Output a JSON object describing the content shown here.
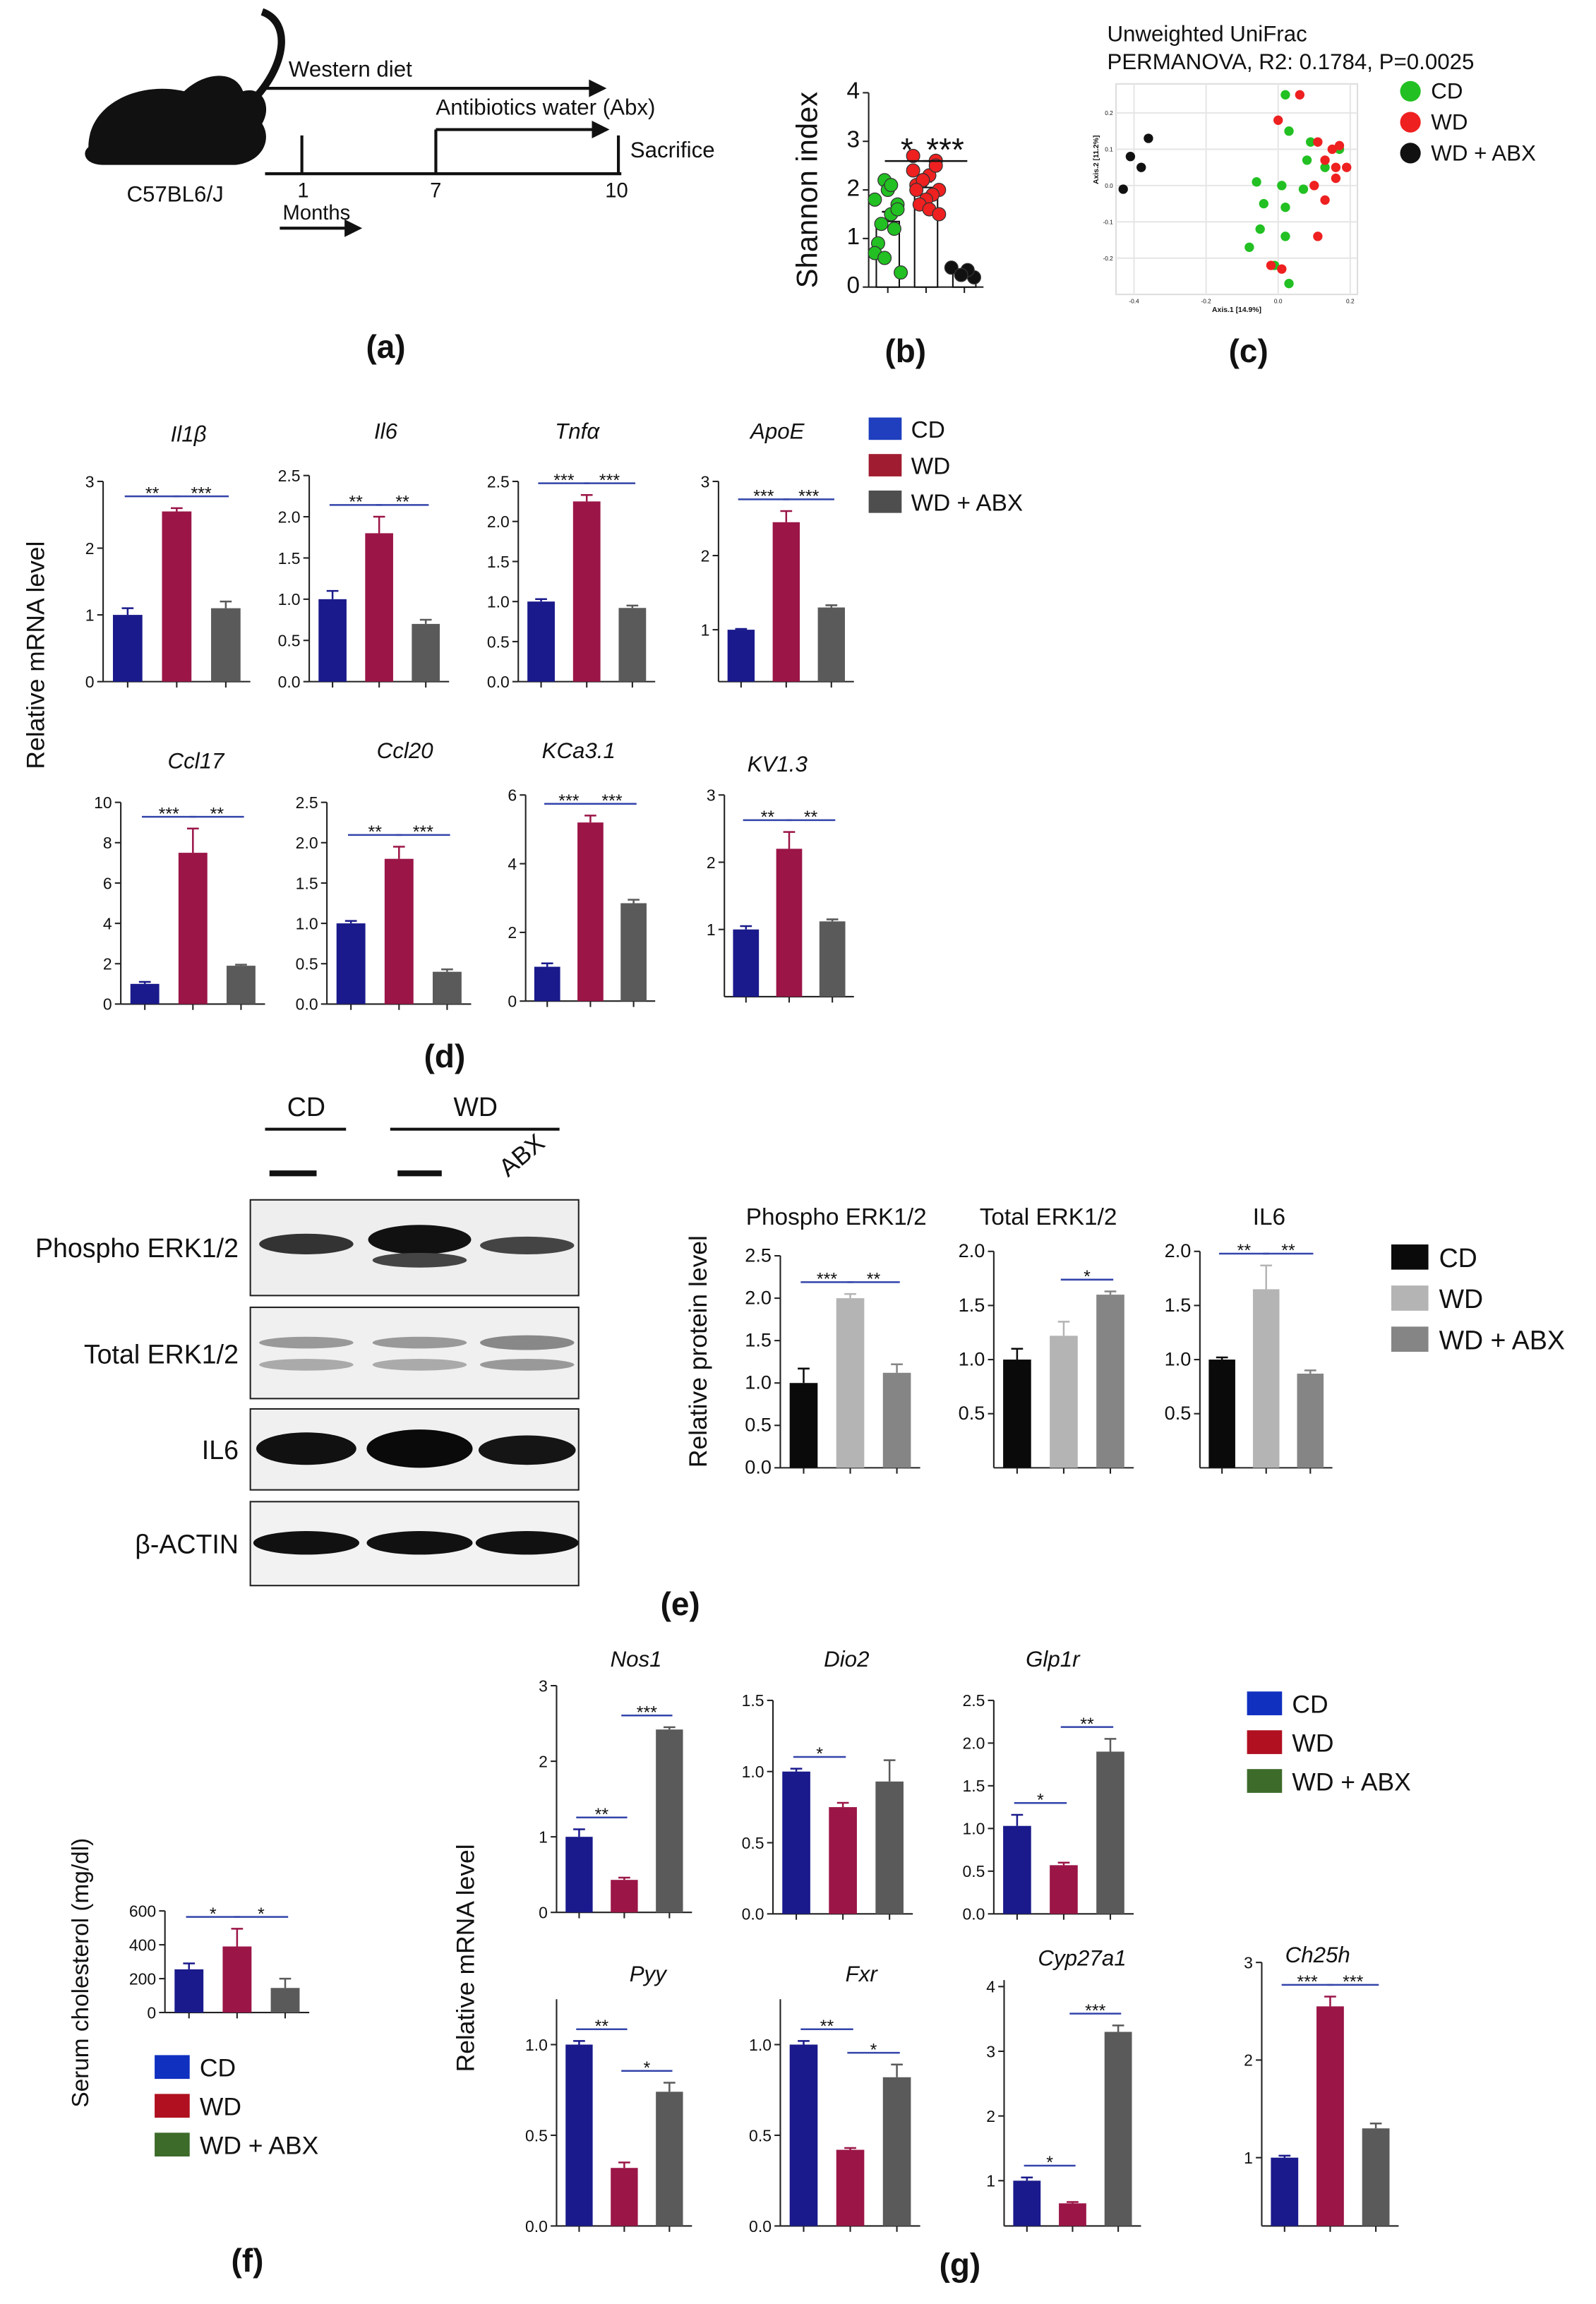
{
  "panel_labels": [
    "(a)",
    "(b)",
    "(c)",
    "(d)",
    "(e)",
    "(f)",
    "(g)"
  ],
  "diagram": {
    "diet": "Western diet",
    "abx": "Antibiotics water  (Abx)",
    "end": "Sacrifice",
    "months": [
      "1",
      "7",
      "10"
    ],
    "unit": "Months",
    "strain": "C57BL6/J"
  },
  "blot": {
    "groups": [
      "CD",
      "WD"
    ],
    "lanes": [
      "ABX"
    ],
    "rows": [
      "Phospho ERK1/2",
      "Total ERK1/2",
      "IL6",
      "β-ACTIN"
    ]
  },
  "legends": [
    {
      "items": [
        {
          "name": "CD",
          "color": "#1f3fbf"
        },
        {
          "name": "WD",
          "color": "#a01c30"
        },
        {
          "name": "WD + ABX",
          "color": "#4e4e4e"
        }
      ]
    },
    {
      "items": [
        {
          "name": "CD",
          "color": "#0a0a0a"
        },
        {
          "name": "WD",
          "color": "#b4b4b4"
        },
        {
          "name": "WD + ABX",
          "color": "#858585"
        }
      ]
    },
    {
      "items": [
        {
          "name": "CD",
          "color": "#1030c0"
        },
        {
          "name": "WD",
          "color": "#b01020"
        },
        {
          "name": "WD + ABX",
          "color": "#3d6b2a"
        }
      ]
    },
    {
      "items": [
        {
          "name": "CD",
          "color": "#1030c0"
        },
        {
          "name": "WD",
          "color": "#b01020"
        },
        {
          "name": "WD + ABX",
          "color": "#3d6b2a"
        }
      ]
    }
  ],
  "chart_data": [
    {
      "type": "strip",
      "ylabel": "Shannon index",
      "categories": [
        null,
        null,
        null
      ],
      "values": [
        1.35,
        2.05,
        0.3
      ],
      "errors": [
        0.2,
        0.12,
        0.05
      ],
      "colors": [
        "#ffffff",
        "#ffffff",
        "#ffffff"
      ],
      "points": [
        [
          1.8,
          1.7,
          1.5,
          2.2,
          0.9,
          0.3,
          1.2,
          2.0,
          1.3,
          0.7,
          1.6,
          2.1,
          0.6
        ],
        [
          2.7,
          2.6,
          2.3,
          2.2,
          2.1,
          2.0,
          1.9,
          1.8,
          1.7,
          2.4,
          2.5,
          1.6,
          2.2,
          2.0,
          1.5
        ],
        [
          0.4,
          0.2,
          0.35,
          0.25
        ]
      ],
      "point_colors": [
        "#22c022",
        "#ee2020",
        "#111111"
      ],
      "ylim": [
        0,
        4
      ],
      "yticks": [
        0,
        1,
        2,
        3,
        4
      ],
      "annotations": [
        "*",
        "***"
      ]
    },
    {
      "type": "scatter",
      "title": "Unweighted UniFrac",
      "subtitle": "PERMANOVA, R2: 0.1784, P=0.0025",
      "xlabel": "Axis.1  [14.9%]",
      "ylabel": "Axis.2  [11.2%]",
      "xlim": [
        -0.45,
        0.22
      ],
      "ylim": [
        -0.3,
        0.28
      ],
      "xticks": [
        -0.4,
        -0.2,
        {
          "value": 0,
          "label": "0.0"
        },
        0.2
      ],
      "yticks": [
        -0.2,
        -0.1,
        {
          "value": 0,
          "label": "0.0"
        },
        0.1,
        0.2
      ],
      "grid": true,
      "series": [
        {
          "name": "CD",
          "color": "#22c022",
          "x": [
            0.02,
            0.03,
            0.09,
            -0.06,
            0.01,
            0.07,
            -0.04,
            0.02,
            0.08,
            0.13,
            -0.05,
            0.02,
            -0.01,
            -0.08,
            0.03,
            0.17
          ],
          "values": [
            0.25,
            0.15,
            0.12,
            0.01,
            0,
            -0.01,
            -0.05,
            -0.06,
            0.07,
            0.05,
            -0.12,
            -0.14,
            -0.22,
            -0.17,
            -0.27,
            0.1
          ]
        },
        {
          "name": "WD",
          "color": "#ee2020",
          "x": [
            0.06,
            0,
            0.11,
            0.15,
            0.17,
            0.13,
            0.16,
            0.1,
            0.13,
            0.19,
            0.11,
            -0.02,
            0.01,
            0.16
          ],
          "values": [
            0.25,
            0.18,
            0.12,
            0.1,
            0.11,
            0.07,
            0.02,
            0,
            -0.04,
            0.05,
            -0.14,
            -0.22,
            -0.23,
            0.05
          ]
        },
        {
          "name": "WD + ABX",
          "color": "#111111",
          "x": [
            -0.43,
            -0.41,
            -0.38,
            -0.36
          ],
          "values": [
            -0.01,
            0.08,
            0.05,
            0.13
          ]
        }
      ]
    },
    {
      "type": "bar",
      "title": "Il1β",
      "ylabel": "Relative mRNA level",
      "categories": [
        null,
        null,
        null
      ],
      "values": [
        1,
        2.55,
        1.1
      ],
      "errors": [
        0.1,
        0.05,
        0.1
      ],
      "colors": [
        "#1a1a8c",
        "#9b1547",
        "#5a5a5a"
      ],
      "ylim": [
        0,
        3
      ],
      "yticks": [
        0,
        1,
        2,
        3
      ],
      "annotations": [
        "**",
        "***"
      ]
    },
    {
      "type": "bar",
      "title": "Il6",
      "categories": [
        null,
        null,
        null
      ],
      "values": [
        1,
        1.8,
        0.7
      ],
      "errors": [
        0.1,
        0.2,
        0.05
      ],
      "colors": [
        "#1a1a8c",
        "#9b1547",
        "#5a5a5a"
      ],
      "ylim": [
        0,
        2.5
      ],
      "yticks": [
        {
          "value": 0,
          "label": "0.0"
        },
        {
          "value": 0.5,
          "label": "0.5"
        },
        {
          "value": 1,
          "label": "1.0"
        },
        {
          "value": 1.5,
          "label": "1.5"
        },
        {
          "value": 2,
          "label": "2.0"
        },
        {
          "value": 2.5,
          "label": "2.5"
        }
      ],
      "annotations": [
        "**",
        "**"
      ]
    },
    {
      "type": "bar",
      "title": "Tnfα",
      "categories": [
        null,
        null,
        null
      ],
      "values": [
        1,
        2.25,
        0.92
      ],
      "errors": [
        0.03,
        0.08,
        0.03
      ],
      "colors": [
        "#1a1a8c",
        "#9b1547",
        "#5a5a5a"
      ],
      "ylim": [
        0,
        2.5
      ],
      "yticks": [
        {
          "value": 0,
          "label": "0.0"
        },
        {
          "value": 0.5,
          "label": "0.5"
        },
        {
          "value": 1,
          "label": "1.0"
        },
        {
          "value": 1.5,
          "label": "1.5"
        },
        {
          "value": 2,
          "label": "2.0"
        },
        {
          "value": 2.5,
          "label": "2.5"
        }
      ],
      "annotations": [
        "***",
        "***"
      ]
    },
    {
      "type": "bar",
      "title": "ApoE",
      "categories": [
        null,
        null,
        null
      ],
      "values": [
        1,
        2.45,
        1.3
      ],
      "errors": [
        0.01,
        0.15,
        0.03
      ],
      "colors": [
        "#1a1a8c",
        "#9b1547",
        "#5a5a5a"
      ],
      "ylim": [
        0.3,
        3
      ],
      "yticks": [
        1,
        2,
        3
      ],
      "annotations": [
        "***",
        "***"
      ]
    },
    {
      "type": "bar",
      "title": "Ccl17",
      "categories": [
        null,
        null,
        null
      ],
      "values": [
        1,
        7.5,
        1.9
      ],
      "errors": [
        0.1,
        1.2,
        0.05
      ],
      "colors": [
        "#1a1a8c",
        "#9b1547",
        "#5a5a5a"
      ],
      "ylim": [
        0,
        10
      ],
      "yticks": [
        0,
        2,
        4,
        6,
        8,
        10
      ],
      "annotations": [
        "***",
        "**"
      ]
    },
    {
      "type": "bar",
      "title": "Ccl20",
      "categories": [
        null,
        null,
        null
      ],
      "values": [
        1,
        1.8,
        0.4
      ],
      "errors": [
        0.03,
        0.15,
        0.03
      ],
      "colors": [
        "#1a1a8c",
        "#9b1547",
        "#5a5a5a"
      ],
      "ylim": [
        0,
        2.5
      ],
      "yticks": [
        {
          "value": 0,
          "label": "0.0"
        },
        {
          "value": 0.5,
          "label": "0.5"
        },
        {
          "value": 1,
          "label": "1.0"
        },
        {
          "value": 1.5,
          "label": "1.5"
        },
        {
          "value": 2,
          "label": "2.0"
        },
        {
          "value": 2.5,
          "label": "2.5"
        }
      ],
      "annotations": [
        "**",
        "***"
      ]
    },
    {
      "type": "bar",
      "title": "KCa3.1",
      "categories": [
        null,
        null,
        null
      ],
      "values": [
        1,
        5.2,
        2.85
      ],
      "errors": [
        0.1,
        0.2,
        0.1
      ],
      "colors": [
        "#1a1a8c",
        "#9b1547",
        "#5a5a5a"
      ],
      "ylim": [
        0,
        6
      ],
      "yticks": [
        0,
        2,
        4,
        6
      ],
      "annotations": [
        "***",
        "***"
      ]
    },
    {
      "type": "bar",
      "title": "KV1.3",
      "categories": [
        null,
        null,
        null
      ],
      "values": [
        1,
        2.2,
        1.12
      ],
      "errors": [
        0.05,
        0.25,
        0.03
      ],
      "colors": [
        "#1a1a8c",
        "#9b1547",
        "#5a5a5a"
      ],
      "ylim": [
        0,
        3
      ],
      "yticks": [
        1,
        2,
        3
      ],
      "annotations": [
        "**",
        "**"
      ]
    },
    {
      "type": "bar",
      "title": "Phospho ERK1/2",
      "ylabel": "Relative protein level",
      "categories": [
        null,
        null,
        null
      ],
      "values": [
        1,
        2,
        1.12
      ],
      "errors": [
        0.17,
        0.05,
        0.1
      ],
      "colors": [
        "#0a0a0a",
        "#b4b4b4",
        "#858585"
      ],
      "ylim": [
        0,
        2.5
      ],
      "yticks": [
        {
          "value": 0,
          "label": "0.0"
        },
        {
          "value": 0.5,
          "label": "0.5"
        },
        {
          "value": 1,
          "label": "1.0"
        },
        {
          "value": 1.5,
          "label": "1.5"
        },
        {
          "value": 2,
          "label": "2.0"
        },
        {
          "value": 2.5,
          "label": "2.5"
        }
      ],
      "annotations": [
        "***",
        "**"
      ]
    },
    {
      "type": "bar",
      "title": "Total ERK1/2",
      "categories": [
        null,
        null,
        null
      ],
      "values": [
        1,
        1.22,
        1.6
      ],
      "errors": [
        0.1,
        0.13,
        0.03
      ],
      "colors": [
        "#0a0a0a",
        "#b4b4b4",
        "#858585"
      ],
      "ylim": [
        0,
        2
      ],
      "yticks": [
        {
          "value": 0.5,
          "label": "0.5"
        },
        {
          "value": 1,
          "label": "1.0"
        },
        {
          "value": 1.5,
          "label": "1.5"
        },
        {
          "value": 2,
          "label": "2.0"
        }
      ],
      "annotations": [
        null,
        "*"
      ]
    },
    {
      "type": "bar",
      "title": "IL6",
      "categories": [
        null,
        null,
        null
      ],
      "values": [
        1,
        1.65,
        0.87
      ],
      "errors": [
        0.02,
        0.22,
        0.03
      ],
      "colors": [
        "#0a0a0a",
        "#b4b4b4",
        "#858585"
      ],
      "ylim": [
        0,
        2
      ],
      "yticks": [
        {
          "value": 0.5,
          "label": "0.5"
        },
        {
          "value": 1,
          "label": "1.0"
        },
        {
          "value": 1.5,
          "label": "1.5"
        },
        {
          "value": 2,
          "label": "2.0"
        }
      ],
      "annotations": [
        "**",
        "**"
      ]
    },
    {
      "type": "bar",
      "ylabel": "Serum cholesterol (mg/dl)",
      "categories": [
        null,
        null,
        null
      ],
      "values": [
        255,
        390,
        145
      ],
      "errors": [
        35,
        105,
        55
      ],
      "colors": [
        "#1a1a8c",
        "#9b1547",
        "#5a5a5a"
      ],
      "ylim": [
        0,
        600
      ],
      "yticks": [
        0,
        200,
        400,
        600
      ],
      "annotations": [
        "*",
        "*"
      ]
    },
    {
      "type": "bar",
      "title": "Nos1",
      "ylabel": "Relative mRNA level",
      "categories": [
        null,
        null,
        null
      ],
      "values": [
        1,
        0.43,
        2.42
      ],
      "errors": [
        0.1,
        0.03,
        0.03
      ],
      "colors": [
        "#1a1a8c",
        "#9b1547",
        "#5a5a5a"
      ],
      "ylim": [
        0,
        3
      ],
      "yticks": [
        0,
        1,
        2,
        3
      ],
      "annotations": [
        "**",
        "***"
      ]
    },
    {
      "type": "bar",
      "title": "Dio2",
      "categories": [
        null,
        null,
        null
      ],
      "values": [
        1,
        0.75,
        0.93
      ],
      "errors": [
        0.02,
        0.03,
        0.15
      ],
      "colors": [
        "#1a1a8c",
        "#9b1547",
        "#5a5a5a"
      ],
      "ylim": [
        0,
        1.5
      ],
      "yticks": [
        {
          "value": 0,
          "label": "0.0"
        },
        {
          "value": 0.5,
          "label": "0.5"
        },
        {
          "value": 1,
          "label": "1.0"
        },
        {
          "value": 1.5,
          "label": "1.5"
        }
      ],
      "annotations": [
        "*",
        null
      ]
    },
    {
      "type": "bar",
      "title": "Glp1r",
      "categories": [
        null,
        null,
        null
      ],
      "values": [
        1.03,
        0.57,
        1.9
      ],
      "errors": [
        0.13,
        0.03,
        0.15
      ],
      "colors": [
        "#1a1a8c",
        "#9b1547",
        "#5a5a5a"
      ],
      "ylim": [
        0,
        2.5
      ],
      "yticks": [
        {
          "value": 0,
          "label": "0.0"
        },
        {
          "value": 0.5,
          "label": "0.5"
        },
        {
          "value": 1,
          "label": "1.0"
        },
        {
          "value": 1.5,
          "label": "1.5"
        },
        {
          "value": 2,
          "label": "2.0"
        },
        {
          "value": 2.5,
          "label": "2.5"
        }
      ],
      "annotations": [
        "*",
        "**"
      ]
    },
    {
      "type": "bar",
      "title": "Pyy",
      "categories": [
        null,
        null,
        null
      ],
      "values": [
        1,
        0.32,
        0.74
      ],
      "errors": [
        0.02,
        0.03,
        0.05
      ],
      "colors": [
        "#1a1a8c",
        "#9b1547",
        "#5a5a5a"
      ],
      "ylim": [
        0,
        1.25
      ],
      "yticks": [
        {
          "value": 0,
          "label": "0.0"
        },
        {
          "value": 0.5,
          "label": "0.5"
        },
        {
          "value": 1,
          "label": "1.0"
        }
      ],
      "annotations": [
        "**",
        "*"
      ]
    },
    {
      "type": "bar",
      "title": "Fxr",
      "categories": [
        null,
        null,
        null
      ],
      "values": [
        1,
        0.42,
        0.82
      ],
      "errors": [
        0.02,
        0.01,
        0.07
      ],
      "colors": [
        "#1a1a8c",
        "#9b1547",
        "#5a5a5a"
      ],
      "ylim": [
        0,
        1.25
      ],
      "yticks": [
        {
          "value": 0,
          "label": "0.0"
        },
        {
          "value": 0.5,
          "label": "0.5"
        },
        {
          "value": 1,
          "label": "1.0"
        }
      ],
      "annotations": [
        "**",
        "*"
      ]
    },
    {
      "type": "bar",
      "title": "Cyp27a1",
      "categories": [
        null,
        null,
        null
      ],
      "values": [
        1,
        0.65,
        3.3
      ],
      "errors": [
        0.05,
        0.02,
        0.1
      ],
      "colors": [
        "#1a1a8c",
        "#9b1547",
        "#5a5a5a"
      ],
      "ylim": [
        0.3,
        4.1
      ],
      "yticks": [
        1,
        2,
        3,
        4
      ],
      "annotations": [
        "*",
        "***"
      ]
    },
    {
      "type": "bar",
      "title": "Ch25h",
      "categories": [
        null,
        null,
        null
      ],
      "values": [
        1,
        2.55,
        1.3
      ],
      "errors": [
        0.02,
        0.1,
        0.05
      ],
      "colors": [
        "#1a1a8c",
        "#9b1547",
        "#5a5a5a"
      ],
      "ylim": [
        0.3,
        3
      ],
      "yticks": [
        1,
        2,
        3
      ],
      "annotations": [
        "***",
        "***"
      ]
    }
  ]
}
